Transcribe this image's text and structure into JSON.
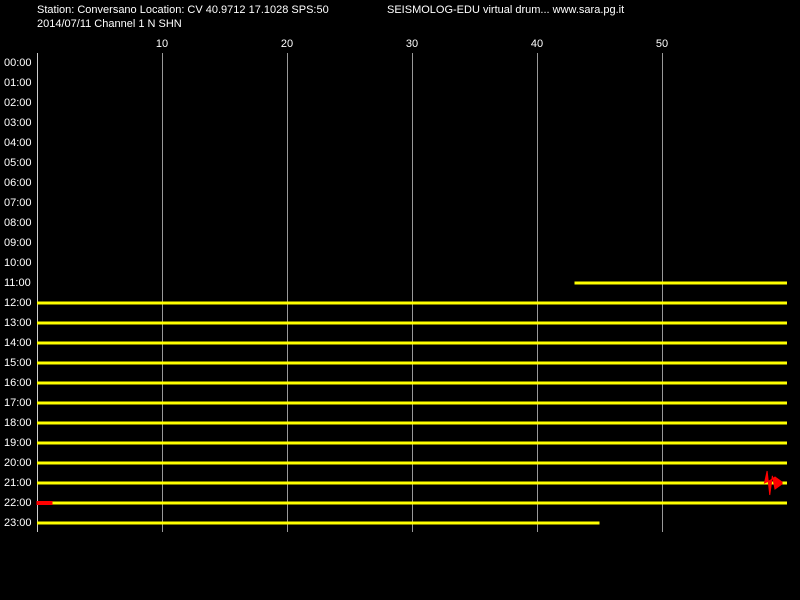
{
  "chart_data": {
    "type": "drum",
    "title": "Station: Conversano Location: CV 40.9712 17.1028 SPS:50",
    "subtitle": "2014/07/11  Channel 1 N SHN",
    "annotation": "SEISMOLOG-EDU virtual drum... www.sara.pg.it",
    "xlim": [
      0,
      60
    ],
    "xticks": [
      10,
      20,
      30,
      40,
      50
    ],
    "grid": true,
    "categories": [
      "00:00",
      "01:00",
      "02:00",
      "03:00",
      "04:00",
      "05:00",
      "06:00",
      "07:00",
      "08:00",
      "09:00",
      "10:00",
      "11:00",
      "12:00",
      "13:00",
      "14:00",
      "15:00",
      "16:00",
      "17:00",
      "18:00",
      "19:00",
      "20:00",
      "21:00",
      "22:00",
      "23:00"
    ],
    "color": "#ffff00",
    "start": [
      null,
      null,
      null,
      null,
      null,
      null,
      null,
      null,
      null,
      null,
      null,
      43,
      0,
      0,
      0,
      0,
      0,
      0,
      0,
      0,
      0,
      0,
      0,
      0
    ],
    "end": [
      null,
      null,
      null,
      null,
      null,
      null,
      null,
      null,
      null,
      null,
      null,
      60,
      60,
      60,
      60,
      60,
      60,
      60,
      60,
      60,
      60,
      60,
      60,
      45
    ],
    "highlight_color": "#ff0000",
    "highlight_start": [
      null,
      null,
      null,
      null,
      null,
      null,
      null,
      null,
      null,
      null,
      null,
      null,
      null,
      null,
      null,
      null,
      null,
      null,
      null,
      null,
      null,
      58.2,
      0,
      null
    ],
    "highlight_end": [
      null,
      null,
      null,
      null,
      null,
      null,
      null,
      null,
      null,
      null,
      null,
      null,
      null,
      null,
      null,
      null,
      null,
      null,
      null,
      null,
      null,
      59.6,
      1.2,
      null
    ]
  }
}
